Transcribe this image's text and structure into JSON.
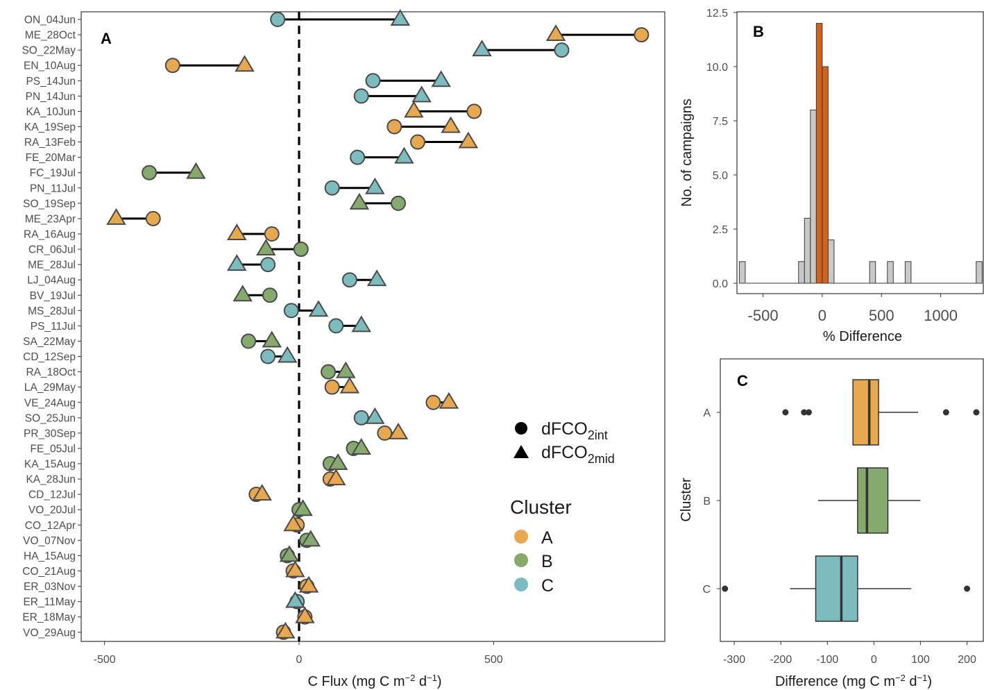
{
  "colors": {
    "A": "#E8A850",
    "B": "#86A96E",
    "C": "#7CBCBF",
    "hist_highlight": "#D2631C",
    "hist_default": "#C8C8C8"
  },
  "chart_data": [
    {
      "panel": "A",
      "type": "scatter",
      "xlabel": "C Flux (mg C  m⁻² d⁻¹)",
      "xlabel_main": "C Flux (mg C  m",
      "xlabel_exp1": "−2",
      "xlabel_mid": " d",
      "xlabel_exp2": "−1",
      "xlabel_end": ")",
      "xlim": [
        -560,
        940
      ],
      "xticks": [
        -500,
        0,
        500
      ],
      "xtick_labels": [
        "-500",
        "0",
        "500"
      ],
      "reference_line_x": 0,
      "legend_shape": {
        "entries": [
          {
            "shape": "circle",
            "main": "dFCO",
            "sub": "2int",
            "label": "dFCO2int"
          },
          {
            "shape": "triangle",
            "main": "dFCO",
            "sub": "2mid",
            "label": "dFCO2mid"
          }
        ]
      },
      "legend_color": {
        "title": "Cluster",
        "entries": [
          "A",
          "B",
          "C"
        ]
      },
      "campaigns": [
        {
          "label": "ON_04Jun",
          "cluster": "C",
          "int": -55,
          "mid": 260
        },
        {
          "label": "ME_28Oct",
          "cluster": "A",
          "int": 880,
          "mid": 660
        },
        {
          "label": "SO_22May",
          "cluster": "C",
          "int": 675,
          "mid": 470
        },
        {
          "label": "EN_10Aug",
          "cluster": "A",
          "int": -325,
          "mid": -140
        },
        {
          "label": "PS_14Jun",
          "cluster": "C",
          "int": 190,
          "mid": 365
        },
        {
          "label": "PN_14Jun",
          "cluster": "C",
          "int": 160,
          "mid": 315
        },
        {
          "label": "KA_10Jun",
          "cluster": "A",
          "int": 450,
          "mid": 295
        },
        {
          "label": "KA_19Sep",
          "cluster": "A",
          "int": 245,
          "mid": 390
        },
        {
          "label": "RA_13Feb",
          "cluster": "A",
          "int": 305,
          "mid": 435
        },
        {
          "label": "FE_20Mar",
          "cluster": "C",
          "int": 150,
          "mid": 270
        },
        {
          "label": "FC_19Jul",
          "cluster": "B",
          "int": -385,
          "mid": -265
        },
        {
          "label": "PN_11Jul",
          "cluster": "C",
          "int": 85,
          "mid": 195
        },
        {
          "label": "SO_19Sep",
          "cluster": "B",
          "int": 255,
          "mid": 155
        },
        {
          "label": "ME_23Apr",
          "cluster": "A",
          "int": -375,
          "mid": -470
        },
        {
          "label": "RA_16Aug",
          "cluster": "A",
          "int": -70,
          "mid": -160
        },
        {
          "label": "CR_06Jul",
          "cluster": "B",
          "int": 5,
          "mid": -85
        },
        {
          "label": "ME_28Jul",
          "cluster": "C",
          "int": -80,
          "mid": -160
        },
        {
          "label": "LJ_04Aug",
          "cluster": "C",
          "int": 130,
          "mid": 200
        },
        {
          "label": "BV_19Jul",
          "cluster": "B",
          "int": -75,
          "mid": -145
        },
        {
          "label": "MS_28Jul",
          "cluster": "C",
          "int": -20,
          "mid": 50
        },
        {
          "label": "PS_11Jul",
          "cluster": "C",
          "int": 95,
          "mid": 160
        },
        {
          "label": "SA_22May",
          "cluster": "B",
          "int": -130,
          "mid": -70
        },
        {
          "label": "CD_12Sep",
          "cluster": "C",
          "int": -80,
          "mid": -30
        },
        {
          "label": "RA_18Oct",
          "cluster": "B",
          "int": 75,
          "mid": 120
        },
        {
          "label": "LA_29May",
          "cluster": "A",
          "int": 85,
          "mid": 130
        },
        {
          "label": "VE_24Aug",
          "cluster": "A",
          "int": 345,
          "mid": 385
        },
        {
          "label": "SO_25Jun",
          "cluster": "C",
          "int": 160,
          "mid": 195
        },
        {
          "label": "PR_30Sep",
          "cluster": "A",
          "int": 220,
          "mid": 255
        },
        {
          "label": "FE_05Jul",
          "cluster": "B",
          "int": 140,
          "mid": 160
        },
        {
          "label": "KA_15Aug",
          "cluster": "B",
          "int": 80,
          "mid": 100
        },
        {
          "label": "KA_28Jun",
          "cluster": "A",
          "int": 80,
          "mid": 95
        },
        {
          "label": "CD_12Jul",
          "cluster": "A",
          "int": -110,
          "mid": -95
        },
        {
          "label": "VO_20Jul",
          "cluster": "B",
          "int": 0,
          "mid": 10
        },
        {
          "label": "CO_12Apr",
          "cluster": "A",
          "int": -5,
          "mid": -15
        },
        {
          "label": "VO_07Nov",
          "cluster": "B",
          "int": 20,
          "mid": 30
        },
        {
          "label": "HA_15Aug",
          "cluster": "B",
          "int": -30,
          "mid": -25
        },
        {
          "label": "CO_21Aug",
          "cluster": "A",
          "int": -15,
          "mid": -10
        },
        {
          "label": "ER_03Nov",
          "cluster": "A",
          "int": 20,
          "mid": 25
        },
        {
          "label": "ER_11May",
          "cluster": "C",
          "int": -5,
          "mid": -10
        },
        {
          "label": "ER_18May",
          "cluster": "A",
          "int": 15,
          "mid": 15
        },
        {
          "label": "VO_29Aug",
          "cluster": "A",
          "int": -40,
          "mid": -35
        }
      ]
    },
    {
      "panel": "B",
      "type": "bar",
      "xlabel": "% Difference",
      "ylabel": "No. of campaigns",
      "xlim": [
        -720,
        1360
      ],
      "ylim": [
        0,
        12.5
      ],
      "xticks": [
        -500,
        0,
        500,
        1000
      ],
      "xtick_labels": [
        "-500",
        "0",
        "500",
        "1000"
      ],
      "yticks": [
        0,
        2.5,
        5,
        7.5,
        10,
        12.5
      ],
      "ytick_labels": [
        "0.0",
        "2.5",
        "5.0",
        "7.5",
        "10.0",
        "12.5"
      ],
      "bin_width": 50,
      "bins": [
        {
          "start": -700,
          "count": 1,
          "highlight": false
        },
        {
          "start": -200,
          "count": 1,
          "highlight": false
        },
        {
          "start": -150,
          "count": 3,
          "highlight": false
        },
        {
          "start": -100,
          "count": 8,
          "highlight": false
        },
        {
          "start": -50,
          "count": 12,
          "highlight": true
        },
        {
          "start": 0,
          "count": 10,
          "highlight": true
        },
        {
          "start": 50,
          "count": 2,
          "highlight": false
        },
        {
          "start": 400,
          "count": 1,
          "highlight": false
        },
        {
          "start": 550,
          "count": 1,
          "highlight": false
        },
        {
          "start": 700,
          "count": 1,
          "highlight": false
        },
        {
          "start": 1300,
          "count": 1,
          "highlight": false
        }
      ]
    },
    {
      "panel": "C",
      "type": "boxplot",
      "xlabel": "Difference (mg C  m⁻² d⁻¹)",
      "xlabel_main": "Difference (mg C  m",
      "xlabel_exp1": "−2",
      "xlabel_mid": " d",
      "xlabel_exp2": "−1",
      "xlabel_end": ")",
      "ylabel": "Cluster",
      "xlim": [
        -330,
        235
      ],
      "xticks": [
        -300,
        -200,
        -100,
        0,
        100,
        200
      ],
      "xtick_labels": [
        "-300",
        "-200",
        "-100",
        "0",
        "100",
        "200"
      ],
      "groups": [
        {
          "name": "A",
          "lower_whisker": -45,
          "q1": -45,
          "median": -10,
          "q3": 10,
          "upper_whisker": 95,
          "outliers": [
            -190,
            -150,
            -140,
            155,
            220
          ]
        },
        {
          "name": "B",
          "lower_whisker": -120,
          "q1": -35,
          "median": -15,
          "q3": 30,
          "upper_whisker": 100,
          "outliers": []
        },
        {
          "name": "C",
          "lower_whisker": -180,
          "q1": -125,
          "median": -70,
          "q3": -35,
          "upper_whisker": 80,
          "outliers": [
            -320,
            200
          ]
        }
      ]
    }
  ]
}
